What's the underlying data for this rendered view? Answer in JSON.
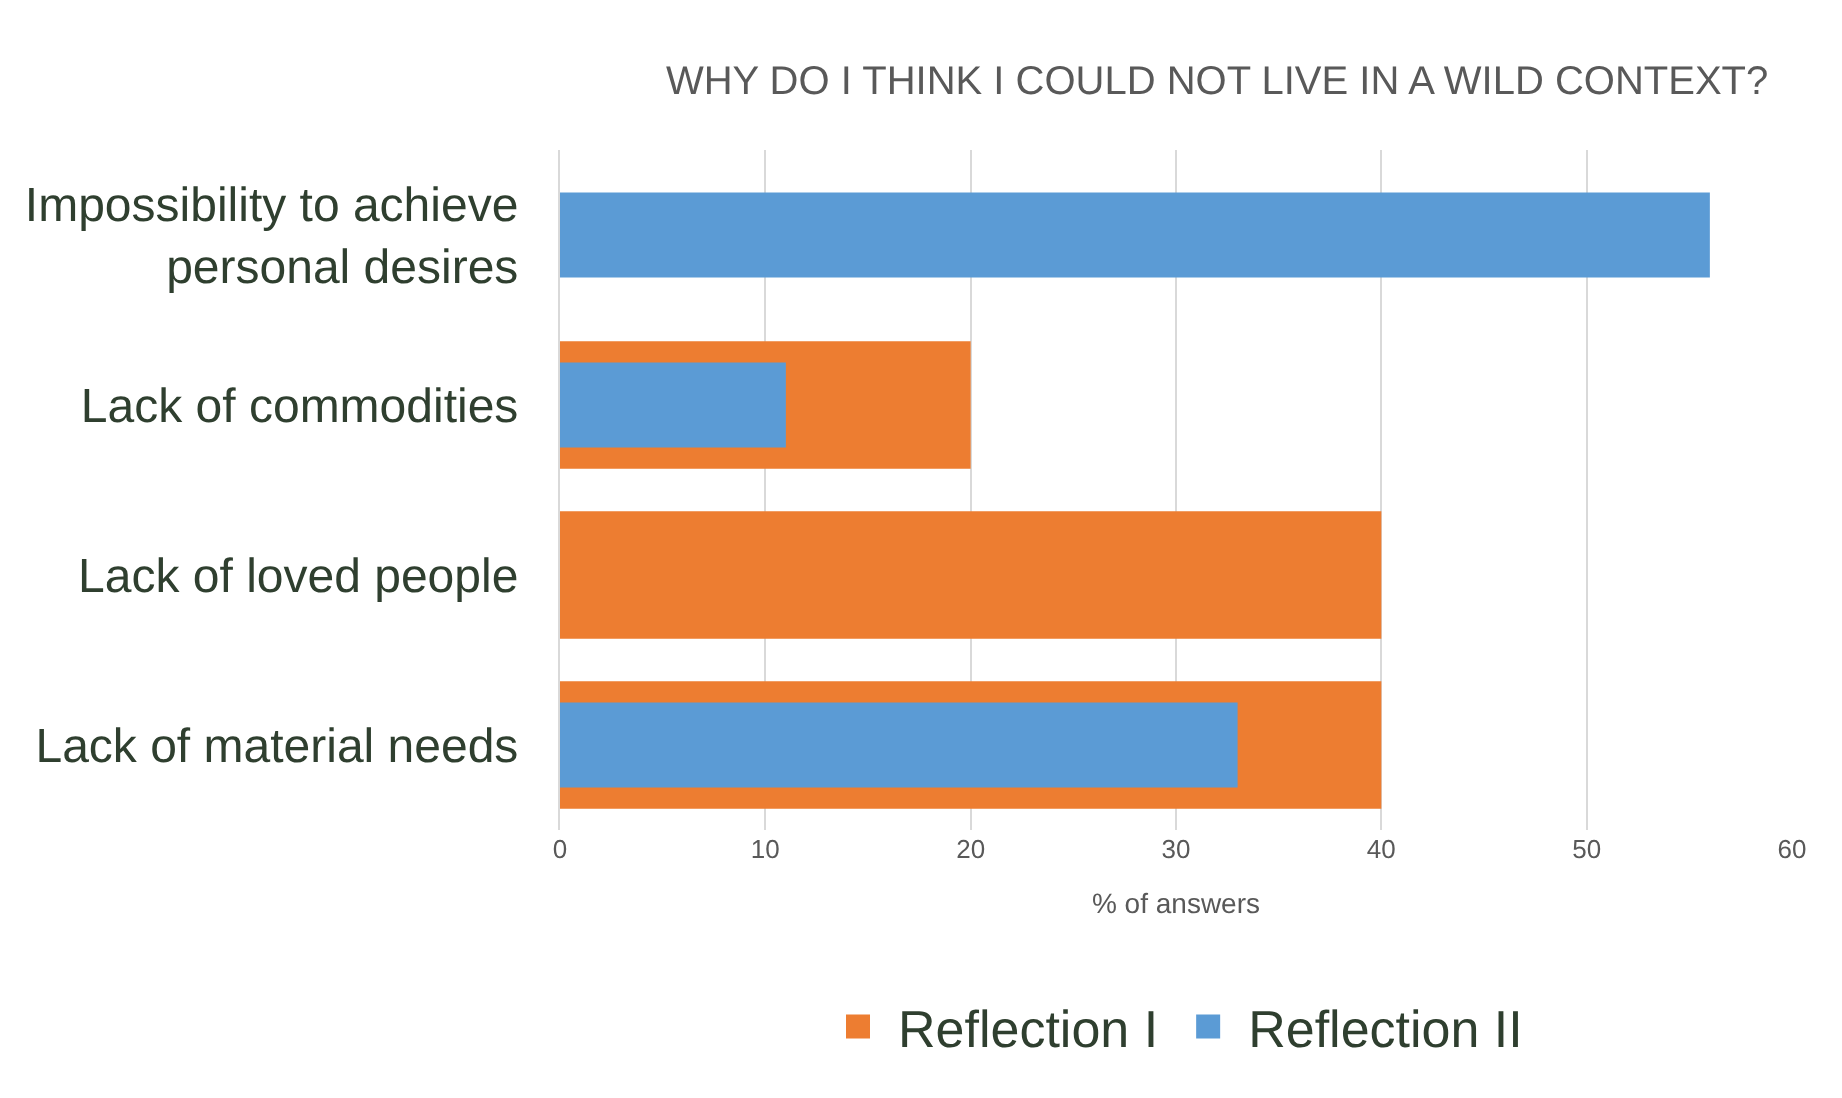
{
  "chart_data": {
    "type": "bar",
    "orientation": "horizontal",
    "title": "WHY DO I THINK I COULD NOT LIVE IN A WILD CONTEXT?",
    "xlabel": "% of answers",
    "categories": [
      "Impossibility to achieve personal desires",
      "Lack of commodities",
      "Lack of loved people",
      "Lack of material needs"
    ],
    "series": [
      {
        "name": "Reflection I",
        "color": "#ed7d31",
        "values": [
          null,
          20,
          40,
          40
        ]
      },
      {
        "name": "Reflection II",
        "color": "#5b9bd5",
        "values": [
          56,
          11,
          null,
          33
        ]
      }
    ],
    "xlim": [
      0,
      60
    ],
    "xticks": [
      0,
      10,
      20,
      30,
      40,
      50,
      60
    ],
    "grid": "x",
    "legend": "bottom"
  }
}
